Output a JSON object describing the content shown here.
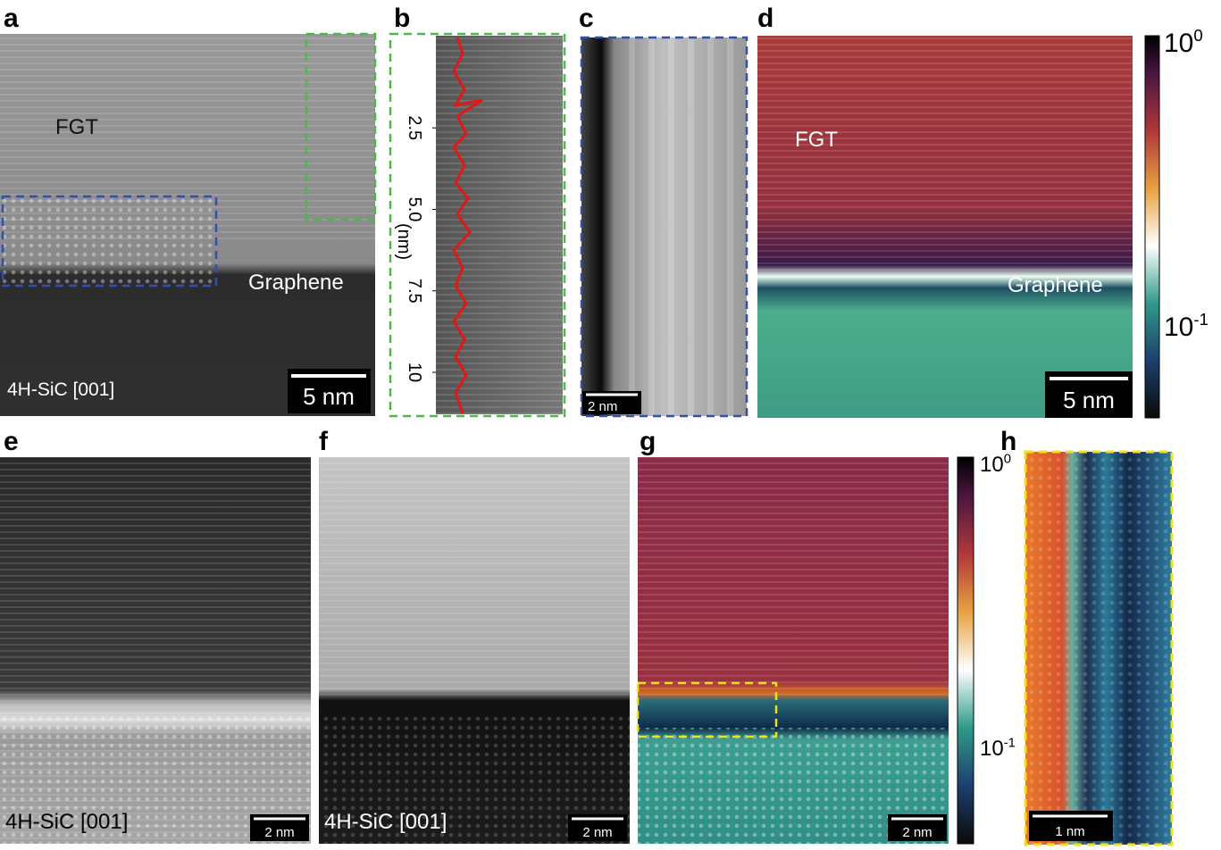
{
  "panels": {
    "a": {
      "label": "a",
      "annotations": [
        "FGT",
        "Graphene",
        "4H-SiC [001]"
      ],
      "scale_bar": "5 nm"
    },
    "b": {
      "label": "b",
      "axis": {
        "label": "(nm)",
        "ticks": [
          2.5,
          {
            "value": 5,
            "label": "5.0"
          },
          7.5,
          10
        ]
      }
    },
    "c": {
      "label": "c",
      "scale_bar": "2 nm"
    },
    "d": {
      "label": "d",
      "annotations": [
        "FGT",
        "Graphene"
      ],
      "scale_bar": "5 nm",
      "colorbar": [
        {
          "base": "10",
          "exp": "0"
        },
        {
          "base": "10",
          "exp": "-1"
        }
      ]
    },
    "e": {
      "label": "e",
      "annotations": [
        "4H-SiC [001]"
      ],
      "scale_bar": "2 nm"
    },
    "f": {
      "label": "f",
      "annotations": [
        "4H-SiC [001]"
      ],
      "scale_bar": "2 nm"
    },
    "g": {
      "label": "g",
      "scale_bar": "2 nm",
      "colorbar": [
        {
          "base": "10",
          "exp": "0"
        },
        {
          "base": "10",
          "exp": "-1"
        }
      ]
    },
    "h": {
      "label": "h",
      "scale_bar": "1 nm"
    }
  }
}
